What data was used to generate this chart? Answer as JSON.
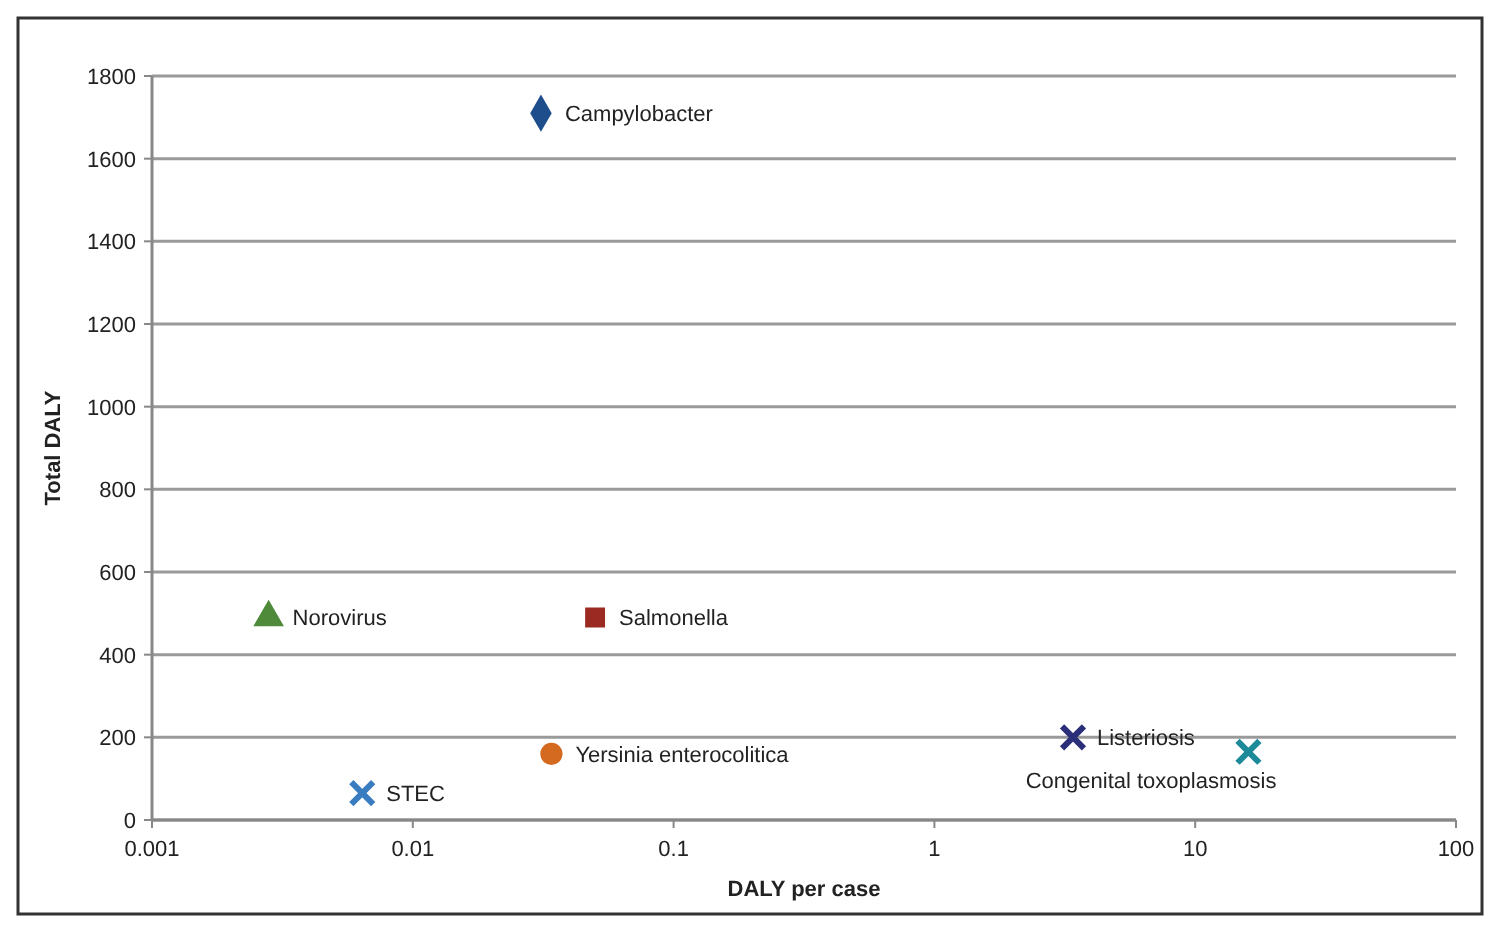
{
  "chart_data": {
    "type": "scatter",
    "xlabel": "DALY per case",
    "ylabel": "Total DALY",
    "log": "x",
    "grid": "y",
    "xlim": [
      0.001,
      100
    ],
    "xticks": [
      0.001,
      0.01,
      0.1,
      1,
      10,
      100
    ],
    "ylim": [
      0,
      1800
    ],
    "yticks": [
      0,
      200,
      400,
      600,
      800,
      1000,
      1200,
      1400,
      1600,
      1800
    ],
    "series": [
      {
        "name": "Campylobacter",
        "color": "#1f4e8c",
        "marker": "diamond",
        "x": [
          0.031
        ],
        "values": [
          1710
        ]
      },
      {
        "name": "Norovirus",
        "color": "#4e8a3a",
        "marker": "triangle",
        "x": [
          0.0028
        ],
        "values": [
          490
        ]
      },
      {
        "name": "Salmonella",
        "color": "#9b2a22",
        "marker": "square",
        "x": [
          0.05
        ],
        "values": [
          490
        ]
      },
      {
        "name": "Yersinia enterocolitica",
        "color": "#d46a1f",
        "marker": "circle",
        "x": [
          0.034
        ],
        "values": [
          160
        ]
      },
      {
        "name": "STEC",
        "color": "#3a7cc0",
        "marker": "cross",
        "x": [
          0.0064
        ],
        "values": [
          65
        ]
      },
      {
        "name": "Listeriosis",
        "color": "#2b2f7a",
        "marker": "cross",
        "x": [
          3.4
        ],
        "values": [
          200
        ]
      },
      {
        "name": "Congenital toxoplasmosis",
        "color": "#1c8a99",
        "marker": "cross",
        "x": [
          16
        ],
        "values": [
          165
        ]
      }
    ]
  }
}
